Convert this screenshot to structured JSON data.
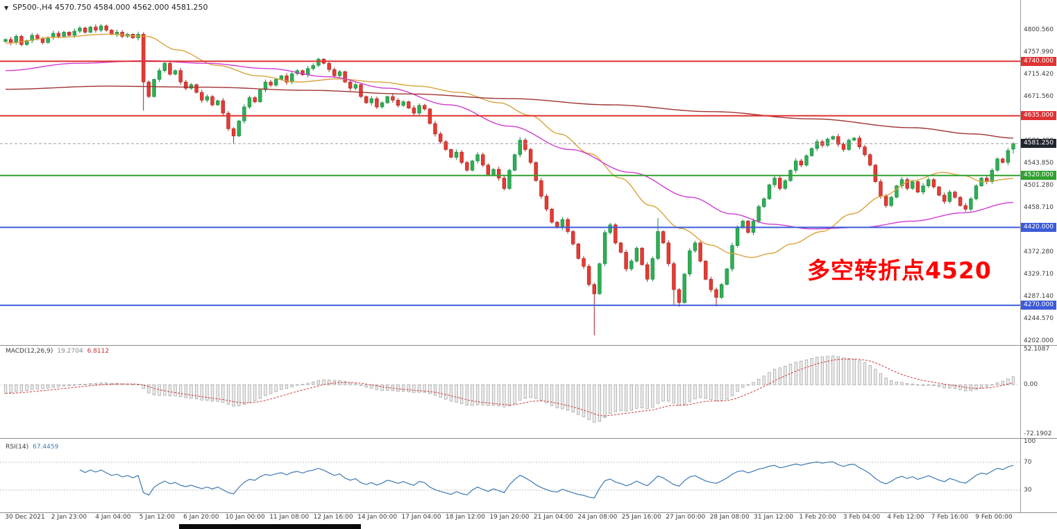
{
  "header": {
    "menu_icon": "▼",
    "ohlc_line": "4570.750 4584.000 4562.000 4581.250"
  },
  "annotation": {
    "text": "多空转折点4520",
    "color": "#ff0000"
  },
  "chart_data": {
    "type": "candlestick",
    "title": "SP500-,H4",
    "symbol": "SP500-",
    "timeframe": "H4",
    "current_bar": {
      "open": 4570.75,
      "high": 4584.0,
      "low": 4562.0,
      "close": 4581.25
    },
    "price_domain": [
      4200,
      4858
    ],
    "candle_up": "#2fae55",
    "candle_up_border": "#15883b",
    "candle_down": "#e53b34",
    "candle_down_border": "#a81f19",
    "closes": [
      4782,
      4776,
      4788,
      4772,
      4780,
      4790,
      4784,
      4776,
      4786,
      4794,
      4788,
      4796,
      4790,
      4798,
      4804,
      4796,
      4806,
      4800,
      4808,
      4800,
      4792,
      4796,
      4788,
      4792,
      4785,
      4792,
      4700,
      4672,
      4705,
      4722,
      4736,
      4715,
      4722,
      4700,
      4688,
      4695,
      4680,
      4665,
      4672,
      4656,
      4664,
      4640,
      4610,
      4596,
      4625,
      4652,
      4670,
      4662,
      4685,
      4700,
      4694,
      4705,
      4712,
      4700,
      4716,
      4722,
      4714,
      4726,
      4732,
      4744,
      4736,
      4724,
      4712,
      4720,
      4700,
      4688,
      4695,
      4672,
      4660,
      4668,
      4652,
      4660,
      4672,
      4665,
      4655,
      4662,
      4650,
      4640,
      4655,
      4648,
      4620,
      4600,
      4585,
      4570,
      4555,
      4565,
      4545,
      4530,
      4548,
      4560,
      4540,
      4522,
      4532,
      4515,
      4495,
      4530,
      4560,
      4588,
      4570,
      4545,
      4510,
      4480,
      4455,
      4430,
      4420,
      4435,
      4412,
      4388,
      4360,
      4345,
      4310,
      4292,
      4350,
      4410,
      4425,
      4390,
      4372,
      4340,
      4355,
      4380,
      4348,
      4320,
      4360,
      4412,
      4390,
      4350,
      4300,
      4275,
      4330,
      4375,
      4390,
      4355,
      4320,
      4300,
      4285,
      4310,
      4340,
      4385,
      4420,
      4432,
      4410,
      4432,
      4460,
      4475,
      4502,
      4515,
      4495,
      4510,
      4530,
      4548,
      4540,
      4558,
      4572,
      4585,
      4578,
      4590,
      4595,
      4580,
      4570,
      4588,
      4592,
      4575,
      4560,
      4540,
      4508,
      4480,
      4462,
      4478,
      4500,
      4512,
      4495,
      4508,
      4488,
      4500,
      4512,
      4498,
      4482,
      4470,
      4488,
      4478,
      4462,
      4455,
      4475,
      4500,
      4515,
      4508,
      4530,
      4552,
      4545,
      4568,
      4581.25
    ],
    "wick_overrides": {
      "26": {
        "low": 4645
      },
      "43": {
        "low": 4582
      },
      "97": {
        "high": 4594
      },
      "111": {
        "low": 4212
      },
      "123": {
        "high": 4438
      },
      "126": {
        "low": 4270
      },
      "127": {
        "low": 4267
      },
      "134": {
        "low": 4268
      }
    },
    "price_ticks": [
      "4800.560",
      "4757.990",
      "4715.420",
      "4671.560",
      "4628.990",
      "4586.420",
      "4543.850",
      "4501.280",
      "4458.710",
      "4416.140",
      "4372.280",
      "4329.710",
      "4287.140",
      "4244.570",
      "4202.000"
    ],
    "price_badges": [
      {
        "label": "4740.000",
        "price": 4740.0,
        "color": "#df3232"
      },
      {
        "label": "4635.000",
        "price": 4635.0,
        "color": "#df3232"
      },
      {
        "label": "4581.250",
        "price": 4581.25,
        "color": "#23252e"
      },
      {
        "label": "4520.000",
        "price": 4520.0,
        "color": "#2fa12f"
      },
      {
        "label": "4420.000",
        "price": 4420.0,
        "color": "#3c5bd9"
      },
      {
        "label": "4270.000",
        "price": 4270.0,
        "color": "#3c5bd9"
      }
    ],
    "hlines": [
      {
        "price": 4740.0,
        "color": "#df3232"
      },
      {
        "price": 4635.0,
        "color": "#df3232"
      },
      {
        "price": 4520.0,
        "color": "#2fa12f"
      },
      {
        "price": 4420.0,
        "color": "#3c5bd9"
      },
      {
        "price": 4270.0,
        "color": "#3c5bd9"
      }
    ],
    "current_price_line": {
      "price": 4581.25,
      "color": "#9a9aa2"
    },
    "ma_lines": [
      {
        "name": "ma-fast-orange",
        "color": "#d9a23a",
        "points": [
          [
            0,
            4775
          ],
          [
            0.05,
            4786
          ],
          [
            0.1,
            4792
          ],
          [
            0.14,
            4788
          ],
          [
            0.17,
            4762
          ],
          [
            0.21,
            4732
          ],
          [
            0.25,
            4712
          ],
          [
            0.29,
            4700
          ],
          [
            0.33,
            4706
          ],
          [
            0.37,
            4700
          ],
          [
            0.41,
            4692
          ],
          [
            0.45,
            4680
          ],
          [
            0.49,
            4660
          ],
          [
            0.52,
            4636
          ],
          [
            0.55,
            4600
          ],
          [
            0.58,
            4562
          ],
          [
            0.61,
            4515
          ],
          [
            0.64,
            4462
          ],
          [
            0.67,
            4418
          ],
          [
            0.7,
            4386
          ],
          [
            0.72,
            4370
          ],
          [
            0.74,
            4362
          ],
          [
            0.76,
            4370
          ],
          [
            0.78,
            4388
          ],
          [
            0.81,
            4412
          ],
          [
            0.84,
            4446
          ],
          [
            0.87,
            4480
          ],
          [
            0.9,
            4510
          ],
          [
            0.93,
            4526
          ],
          [
            0.95,
            4520
          ],
          [
            0.97,
            4508
          ],
          [
            1.0,
            4514
          ]
        ]
      },
      {
        "name": "ma-mid-magenta",
        "color": "#cf3ccf",
        "points": [
          [
            0,
            4722
          ],
          [
            0.07,
            4736
          ],
          [
            0.14,
            4741
          ],
          [
            0.2,
            4736
          ],
          [
            0.26,
            4726
          ],
          [
            0.32,
            4710
          ],
          [
            0.38,
            4688
          ],
          [
            0.44,
            4656
          ],
          [
            0.5,
            4615
          ],
          [
            0.56,
            4570
          ],
          [
            0.62,
            4526
          ],
          [
            0.68,
            4478
          ],
          [
            0.72,
            4446
          ],
          [
            0.76,
            4426
          ],
          [
            0.8,
            4417
          ],
          [
            0.85,
            4420
          ],
          [
            0.9,
            4432
          ],
          [
            0.95,
            4448
          ],
          [
            1.0,
            4468
          ]
        ]
      },
      {
        "name": "ma-slow-darkred",
        "color": "#a03333",
        "points": [
          [
            0,
            4686
          ],
          [
            0.1,
            4692
          ],
          [
            0.2,
            4690
          ],
          [
            0.3,
            4684
          ],
          [
            0.4,
            4677
          ],
          [
            0.5,
            4668
          ],
          [
            0.6,
            4656
          ],
          [
            0.7,
            4643
          ],
          [
            0.8,
            4629
          ],
          [
            0.9,
            4612
          ],
          [
            0.96,
            4600
          ],
          [
            1.0,
            4592
          ]
        ]
      }
    ],
    "x_labels": [
      "30 Dec 2021",
      "2 Jan 23:00",
      "4 Jan 04:00",
      "5 Jan 12:00",
      "6 Jan 20:00",
      "10 Jan 00:00",
      "11 Jan 08:00",
      "12 Jan 16:00",
      "14 Jan 00:00",
      "17 Jan 04:00",
      "18 Jan 12:00",
      "19 Jan 20:00",
      "21 Jan 04:00",
      "24 Jan 08:00",
      "25 Jan 16:00",
      "27 Jan 00:00",
      "28 Jan 08:00",
      "31 Jan 12:00",
      "1 Feb 20:00",
      "3 Feb 04:00",
      "4 Feb 12:00",
      "7 Feb 16:00",
      "9 Feb 00:00"
    ],
    "macd": {
      "label": "MACD(12,26,9)",
      "value": "19.2704",
      "signal": "6.8112",
      "axis_labels": [
        "52.1087",
        "0.00",
        "-72.1902"
      ],
      "domain": [
        -75,
        55
      ],
      "histogram_fill": "#ededed",
      "histogram_stroke": "#9b9b9b",
      "signal_color": "#d03a3a"
    },
    "rsi": {
      "label": "RSI(14)",
      "value": "67.4459",
      "axis_labels": [
        "100",
        "70",
        "30"
      ],
      "levels": [
        70,
        30
      ],
      "domain": [
        0,
        100
      ],
      "line_color": "#3a78b5"
    }
  }
}
